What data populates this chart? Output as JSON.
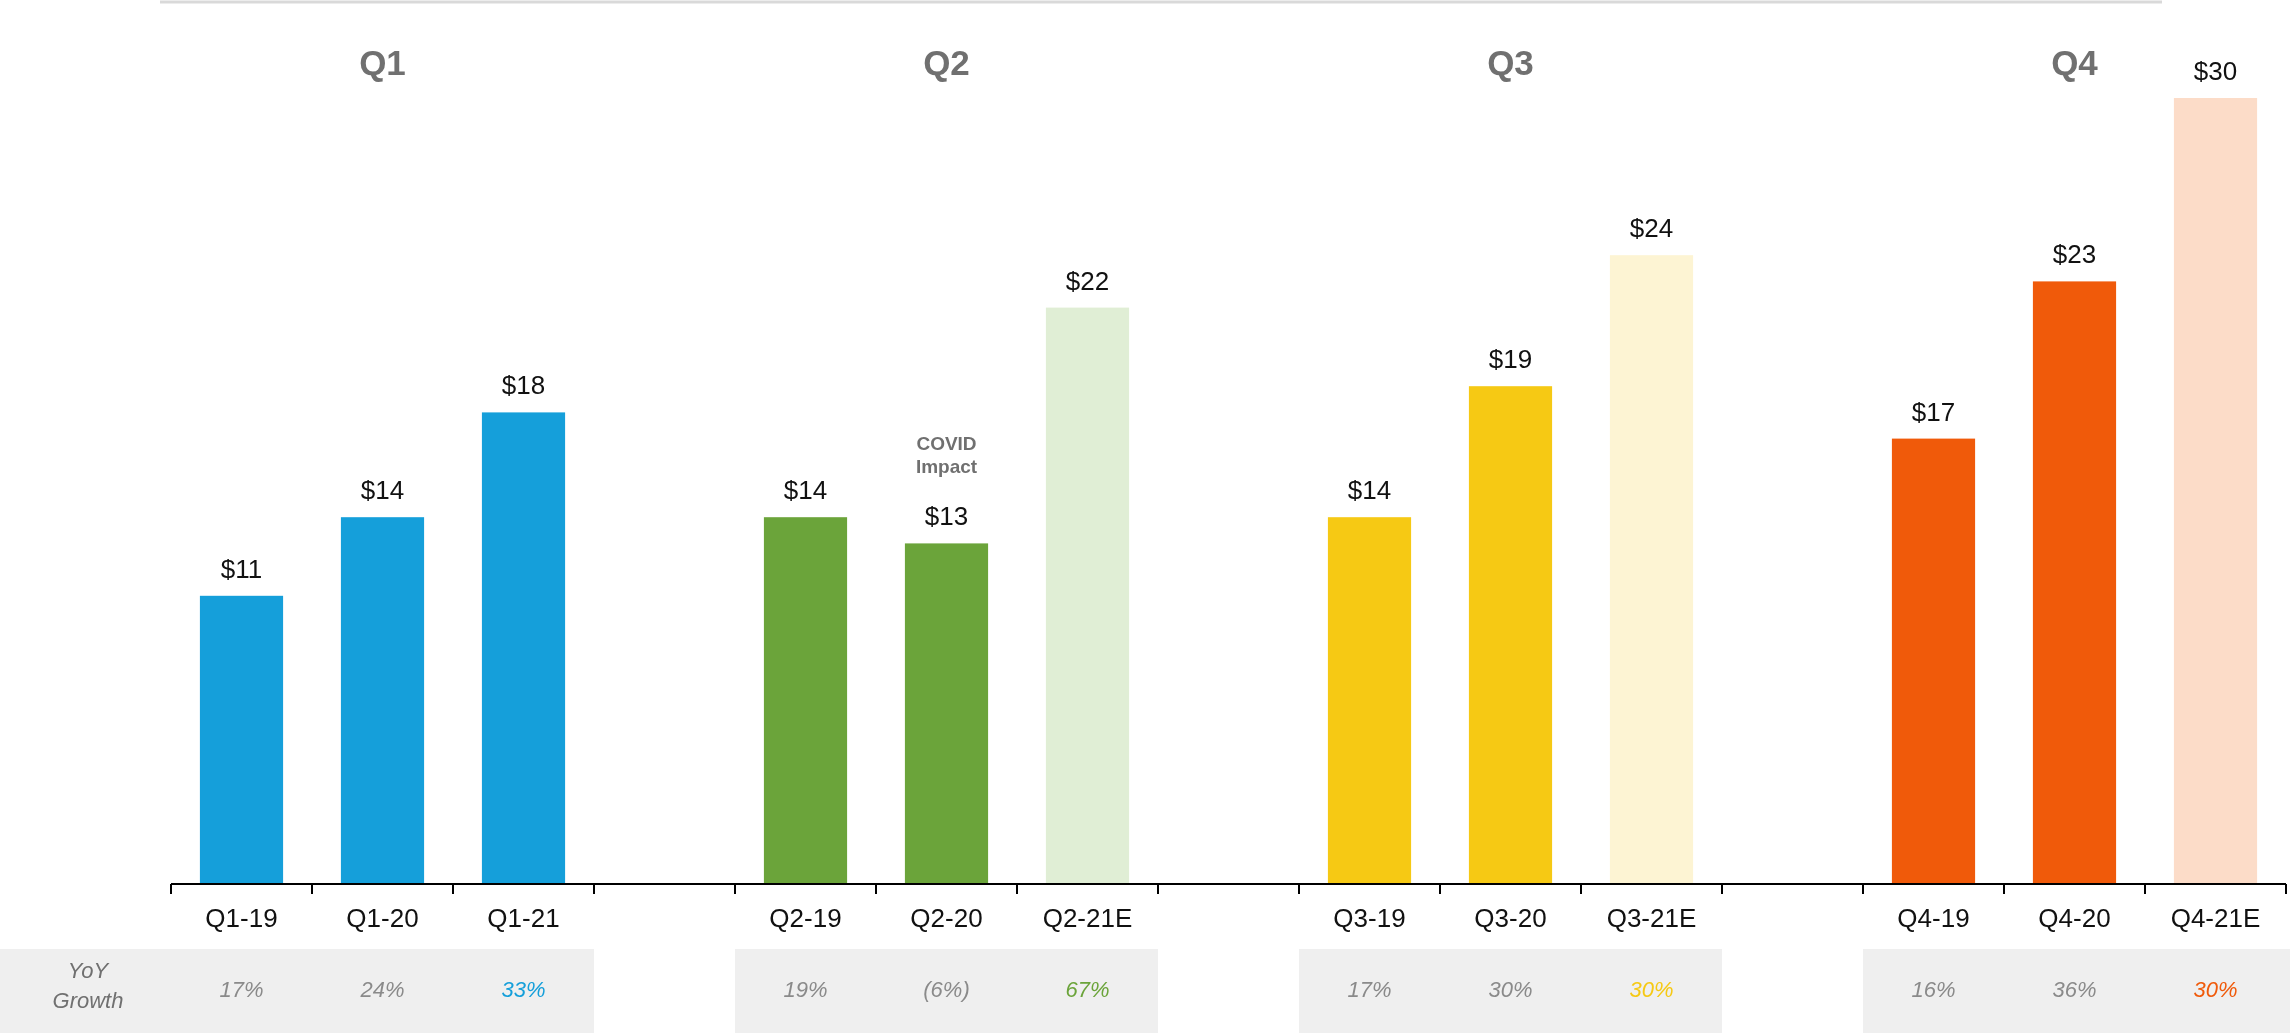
{
  "chart_data": {
    "type": "bar",
    "categories": [
      "Q1-19",
      "Q1-20",
      "Q1-21",
      null,
      "Q2-19",
      "Q2-20",
      "Q2-21E",
      null,
      "Q3-19",
      "Q3-20",
      "Q3-21E",
      null,
      "Q4-19",
      "Q4-20",
      "Q4-21E"
    ],
    "values": [
      11,
      14,
      18,
      null,
      14,
      13,
      22,
      null,
      14,
      19,
      24,
      null,
      17,
      23,
      30
    ],
    "colors": [
      "#159fda",
      "#159fda",
      "#159fda",
      null,
      "#6ba43a",
      "#6ba43a",
      "#e0eed5",
      null,
      "#f6c914",
      "#f6c914",
      "#fdf4d3",
      null,
      "#f05a0a",
      "#f05a0a",
      "#fcdcc8"
    ],
    "value_labels": [
      "$11",
      "$14",
      "$18",
      null,
      "$14",
      "$13",
      "$22",
      null,
      "$14",
      "$19",
      "$24",
      null,
      "$17",
      "$23",
      "$30"
    ],
    "ylim": [
      0,
      30
    ],
    "tick_labels": "x",
    "annotations": [
      "Q1",
      "Q2",
      "Q3",
      "Q4",
      "YoY Growth",
      "COVID Impact",
      "17%",
      "24%",
      "33%",
      "19%",
      "(6%)",
      "67%",
      "17%",
      "30%",
      "30%",
      "16%",
      "36%",
      "30%"
    ]
  }
}
